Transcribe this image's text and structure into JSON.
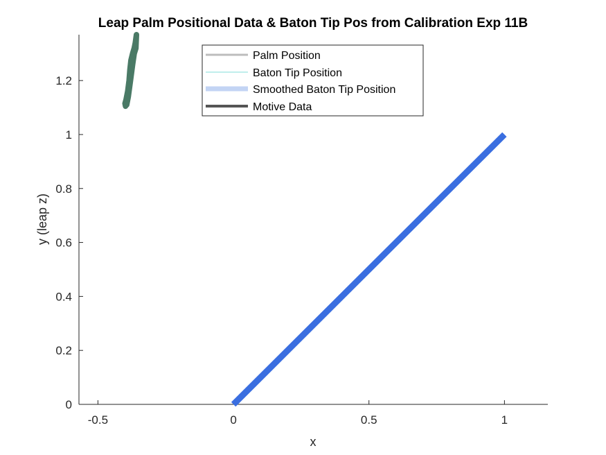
{
  "chart_data": {
    "type": "line",
    "title": "Leap Palm Positional Data & Baton Tip Pos from Calibration Exp 11B",
    "xlabel": "x",
    "ylabel": "y (leap z)",
    "xlim": [
      -0.57,
      1.16
    ],
    "ylim": [
      0,
      1.37
    ],
    "xticks": [
      -0.5,
      0,
      0.5,
      1
    ],
    "xtick_labels": [
      "-0.5",
      "0",
      "0.5",
      "1"
    ],
    "yticks": [
      0,
      0.2,
      0.4,
      0.6,
      0.8,
      1,
      1.2
    ],
    "ytick_labels": [
      "0",
      "0.2",
      "0.4",
      "0.6",
      "0.8",
      "1",
      "1.2"
    ],
    "grid": false,
    "legend_position": "top",
    "series": [
      {
        "name": "Palm Position",
        "color": "#bdbdbd",
        "x": [],
        "y": []
      },
      {
        "name": "Baton Tip Position",
        "color": "#7fdcd8",
        "x": [],
        "y": []
      },
      {
        "name": "Smoothed Baton Tip Position",
        "color": "#3a6ee0",
        "x": [
          0,
          1
        ],
        "y": [
          0,
          1
        ]
      },
      {
        "name": "Motive Data",
        "color": "#4a7a66",
        "x": [
          -0.398,
          -0.4,
          -0.396,
          -0.39,
          -0.385,
          -0.382,
          -0.378,
          -0.372,
          -0.366,
          -0.362,
          -0.358,
          -0.36,
          -0.366,
          -0.372,
          -0.38,
          -0.388,
          -0.394
        ],
        "y": [
          1.105,
          1.115,
          1.13,
          1.16,
          1.2,
          1.24,
          1.275,
          1.3,
          1.32,
          1.34,
          1.37,
          1.32,
          1.3,
          1.26,
          1.2,
          1.14,
          1.11
        ]
      }
    ]
  }
}
